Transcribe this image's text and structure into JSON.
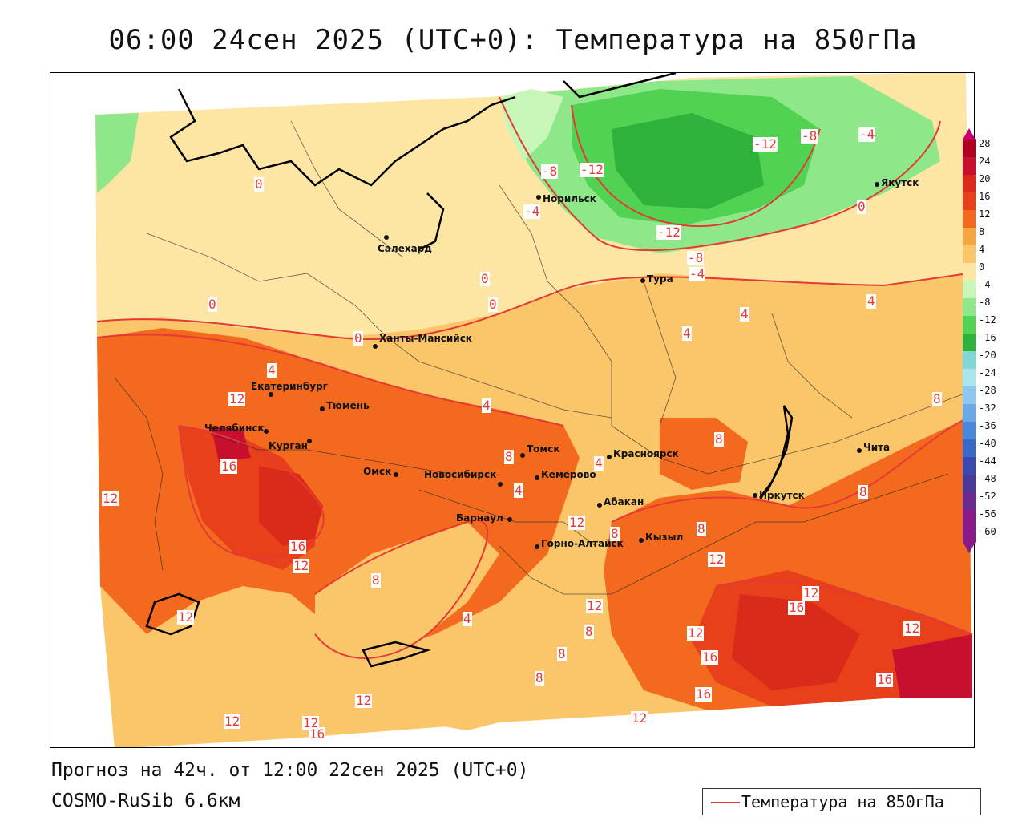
{
  "title": "06:00 24сен 2025 (UTC+0): Температура на 850гПа",
  "footer": {
    "forecast": "Прогноз на 42ч. от 12:00 22сен 2025 (UTC+0)",
    "model": "COSMO-RuSib 6.6км"
  },
  "legend": {
    "label": "Температура на 850гПа",
    "line_color": "#e53935"
  },
  "colorbar": {
    "ticks": [
      "28",
      "24",
      "20",
      "16",
      "12",
      "8",
      "4",
      "0",
      "-4",
      "-8",
      "-12",
      "-16",
      "-20",
      "-24",
      "-28",
      "-32",
      "-36",
      "-40",
      "-44",
      "-48",
      "-52",
      "-56",
      "-60"
    ],
    "colors": [
      "#b00020",
      "#c8102e",
      "#dc2a1a",
      "#e8401a",
      "#f36a1f",
      "#f7a540",
      "#fbc66a",
      "#fde6a3",
      "#c8f5b8",
      "#8ee88a",
      "#52d252",
      "#2fb23c",
      "#7fd8d6",
      "#a8e6f0",
      "#8cc8f0",
      "#6aa8e8",
      "#4a88dc",
      "#3a68c8",
      "#3a48b0",
      "#4a3a98",
      "#6a2a90",
      "#8a1a88"
    ]
  },
  "cities": [
    {
      "name": "Якутск"
    },
    {
      "name": "Норильск"
    },
    {
      "name": "Салехард"
    },
    {
      "name": "Тура"
    },
    {
      "name": "Ханты-Мансийск"
    },
    {
      "name": "Екатеринбург"
    },
    {
      "name": "Тюмень"
    },
    {
      "name": "Челябинск"
    },
    {
      "name": "Курган"
    },
    {
      "name": "Омск"
    },
    {
      "name": "Новосибирск"
    },
    {
      "name": "Томск"
    },
    {
      "name": "Кемерово"
    },
    {
      "name": "Красноярск"
    },
    {
      "name": "Барнаул"
    },
    {
      "name": "Абакан"
    },
    {
      "name": "Иркутск"
    },
    {
      "name": "Чита"
    },
    {
      "name": "Кызыл"
    },
    {
      "name": "Горно-Алтайск"
    }
  ],
  "contour_labels": [
    "-12",
    "-8",
    "-4",
    "-8",
    "-12",
    "-4",
    "-12",
    "-8",
    "-4",
    "0",
    "0",
    "0",
    "0",
    "0",
    "0",
    "4",
    "4",
    "4",
    "4",
    "4",
    "4",
    "4",
    "4",
    "8",
    "8",
    "8",
    "8",
    "8",
    "8",
    "8",
    "8",
    "8",
    "8",
    "12",
    "12",
    "12",
    "12",
    "12",
    "12",
    "12",
    "12",
    "12",
    "12",
    "12",
    "12",
    "12",
    "12",
    "16",
    "16",
    "16",
    "16",
    "16",
    "16",
    "16"
  ]
}
